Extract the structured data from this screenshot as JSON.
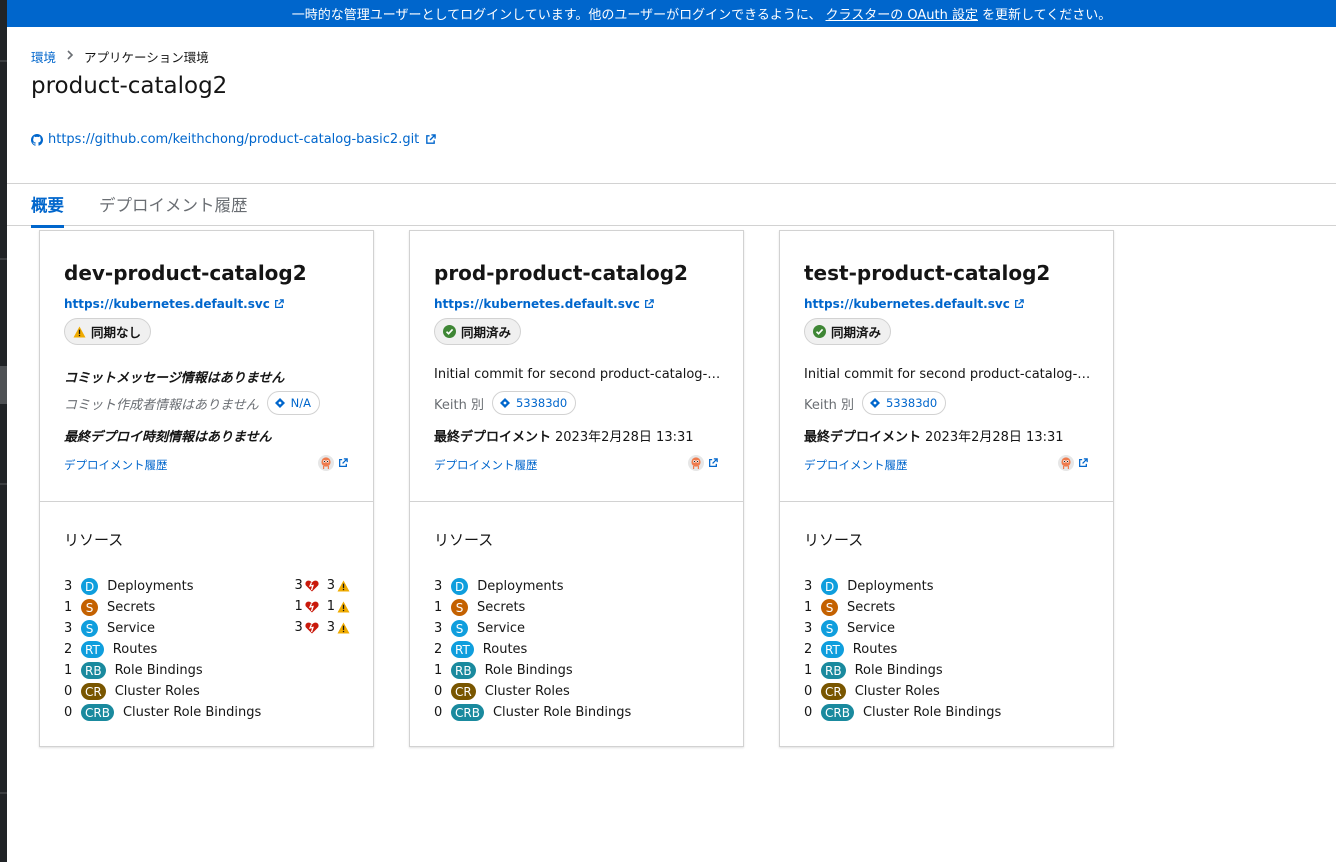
{
  "banner": {
    "text_before": "一時的な管理ユーザーとしてログインしています。他のユーザーがログインできるように、",
    "link_text": "クラスターの OAuth 設定",
    "text_after": "を更新してください。"
  },
  "breadcrumb": {
    "parent": "環境",
    "current": "アプリケーション環境"
  },
  "page": {
    "title": "product-catalog2",
    "repo_url": "https://github.com/keithchong/product-catalog-basic2.git"
  },
  "tabs": [
    {
      "label": "概要",
      "active": true
    },
    {
      "label": "デプロイメント履歴",
      "active": false
    }
  ],
  "colors": {
    "accent": "#0066cc",
    "deployment": "#0f9edd",
    "secret": "#c46100",
    "service": "#0f9edd",
    "route": "#0f9edd",
    "role_binding": "#1a8a9e",
    "cluster_role": "#795600",
    "cluster_role_binding": "#1a8a9e",
    "degraded": "#c9190b",
    "warning": "#f0ab00",
    "synced": "#3e8635"
  },
  "cards": [
    {
      "name": "dev-product-catalog2",
      "cluster_url": "https://kubernetes.default.svc",
      "status": "同期なし",
      "status_icon": "warning-icon",
      "commit_message": "コミットメッセージ情報はありません",
      "author": "コミット作成者情報はありません",
      "sha": "N/A",
      "deploy_label": "",
      "deploy_time": "最終デプロイ時刻情報はありません",
      "history_link": "デプロイメント履歴",
      "resources_title": "リソース",
      "resources": [
        {
          "count": "3",
          "abbr": "D",
          "name": "Deployments",
          "degraded": "3",
          "warning": "3"
        },
        {
          "count": "1",
          "abbr": "S",
          "name": "Secrets",
          "degraded": "1",
          "warning": "1"
        },
        {
          "count": "3",
          "abbr": "S",
          "name": "Service",
          "degraded": "3",
          "warning": "3"
        },
        {
          "count": "2",
          "abbr": "RT",
          "name": "Routes"
        },
        {
          "count": "1",
          "abbr": "RB",
          "name": "Role Bindings"
        },
        {
          "count": "0",
          "abbr": "CR",
          "name": "Cluster Roles"
        },
        {
          "count": "0",
          "abbr": "CRB",
          "name": "Cluster Role Bindings"
        }
      ]
    },
    {
      "name": "prod-product-catalog2",
      "cluster_url": "https://kubernetes.default.svc",
      "status": "同期済み",
      "status_icon": "check-circle-icon",
      "commit_message": "Initial commit for second product-catalog-b...",
      "author": "Keith 別",
      "sha": "53383d0",
      "deploy_label": "最終デプロイメント",
      "deploy_time": "2023年2月28日 13:31",
      "history_link": "デプロイメント履歴",
      "resources_title": "リソース",
      "resources": [
        {
          "count": "3",
          "abbr": "D",
          "name": "Deployments"
        },
        {
          "count": "1",
          "abbr": "S",
          "name": "Secrets"
        },
        {
          "count": "3",
          "abbr": "S",
          "name": "Service"
        },
        {
          "count": "2",
          "abbr": "RT",
          "name": "Routes"
        },
        {
          "count": "1",
          "abbr": "RB",
          "name": "Role Bindings"
        },
        {
          "count": "0",
          "abbr": "CR",
          "name": "Cluster Roles"
        },
        {
          "count": "0",
          "abbr": "CRB",
          "name": "Cluster Role Bindings"
        }
      ]
    },
    {
      "name": "test-product-catalog2",
      "cluster_url": "https://kubernetes.default.svc",
      "status": "同期済み",
      "status_icon": "check-circle-icon",
      "commit_message": "Initial commit for second product-catalog-b...",
      "author": "Keith 別",
      "sha": "53383d0",
      "deploy_label": "最終デプロイメント",
      "deploy_time": "2023年2月28日 13:31",
      "history_link": "デプロイメント履歴",
      "resources_title": "リソース",
      "resources": [
        {
          "count": "3",
          "abbr": "D",
          "name": "Deployments"
        },
        {
          "count": "1",
          "abbr": "S",
          "name": "Secrets"
        },
        {
          "count": "3",
          "abbr": "S",
          "name": "Service"
        },
        {
          "count": "2",
          "abbr": "RT",
          "name": "Routes"
        },
        {
          "count": "1",
          "abbr": "RB",
          "name": "Role Bindings"
        },
        {
          "count": "0",
          "abbr": "CR",
          "name": "Cluster Roles"
        },
        {
          "count": "0",
          "abbr": "CRB",
          "name": "Cluster Role Bindings"
        }
      ]
    }
  ]
}
